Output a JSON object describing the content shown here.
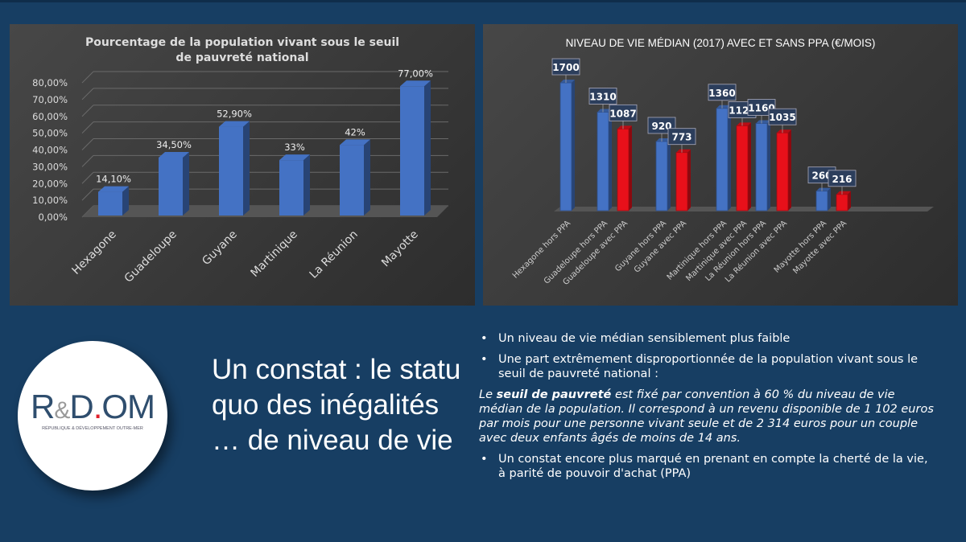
{
  "logo": {
    "text": "R&D.OM",
    "subtitle": "RÉPUBLIQUE & DÉVELOPPEMENT OUTRE-MER",
    "accent": "#e0212b"
  },
  "heading": "Un constat : le statu quo des inégalités … de niveau de vie",
  "bullets": [
    "Un niveau de vie médian sensiblement plus faible",
    "Une part extrêmement disproportionnée de la population vivant sous le seuil de pauvreté national :"
  ],
  "definition": {
    "prefix": "Le ",
    "bold": "seuil de pauvreté",
    "rest": " est fixé par convention à 60 % du niveau de vie médian de la population. Il correspond à un revenu disponible de 1 102 euros par mois pour une personne vivant seule et de 2 314 euros pour un couple avec deux enfants âgés de moins de 14 ans."
  },
  "bullet3": "Un constat encore plus marqué en prenant en compte la cherté de la vie, à parité de pouvoir d'achat (PPA)",
  "chart_data": [
    {
      "type": "bar",
      "title": "Pourcentage de la population vivant sous le seuil de pauvreté national",
      "categories": [
        "Hexagone",
        "Guadeloupe",
        "Guyane",
        "Martinique",
        "La Réunion",
        "Mayotte"
      ],
      "values": [
        14.1,
        34.5,
        52.9,
        33,
        42,
        77
      ],
      "data_labels": [
        "14,10%",
        "34,50%",
        "52,90%",
        "33%",
        "42%",
        "77,00%"
      ],
      "yticks": [
        "0,00%",
        "10,00%",
        "20,00%",
        "30,00%",
        "40,00%",
        "50,00%",
        "60,00%",
        "70,00%",
        "80,00%"
      ],
      "ylim": [
        0,
        80
      ],
      "grid": true,
      "color": "#4472c4"
    },
    {
      "type": "bar",
      "title": "NIVEAU DE VIE MÉDIAN (2017) AVEC ET SANS PPA (€/MOIS)",
      "categories": [
        "Hexagone hors PPA",
        "Guadeloupe hors PPA",
        "Guadeloupe avec PPA",
        "Guyane hors PPA",
        "Guyane avec PPA",
        "Martinique hors PPA",
        "Martinique avec PPA",
        "La Réunion hors PPA",
        "La Réunion avec PPA",
        "Mayotte hors PPA",
        "Mayotte avec PPA"
      ],
      "values": [
        1700,
        1310,
        1087,
        920,
        773,
        1360,
        1129,
        1160,
        1035,
        260,
        216
      ],
      "colors": [
        "#4472c4",
        "#4472c4",
        "#e8101a",
        "#4472c4",
        "#e8101a",
        "#4472c4",
        "#e8101a",
        "#4472c4",
        "#e8101a",
        "#4472c4",
        "#e8101a"
      ],
      "ylim": [
        0,
        1700
      ],
      "grid": false
    }
  ]
}
